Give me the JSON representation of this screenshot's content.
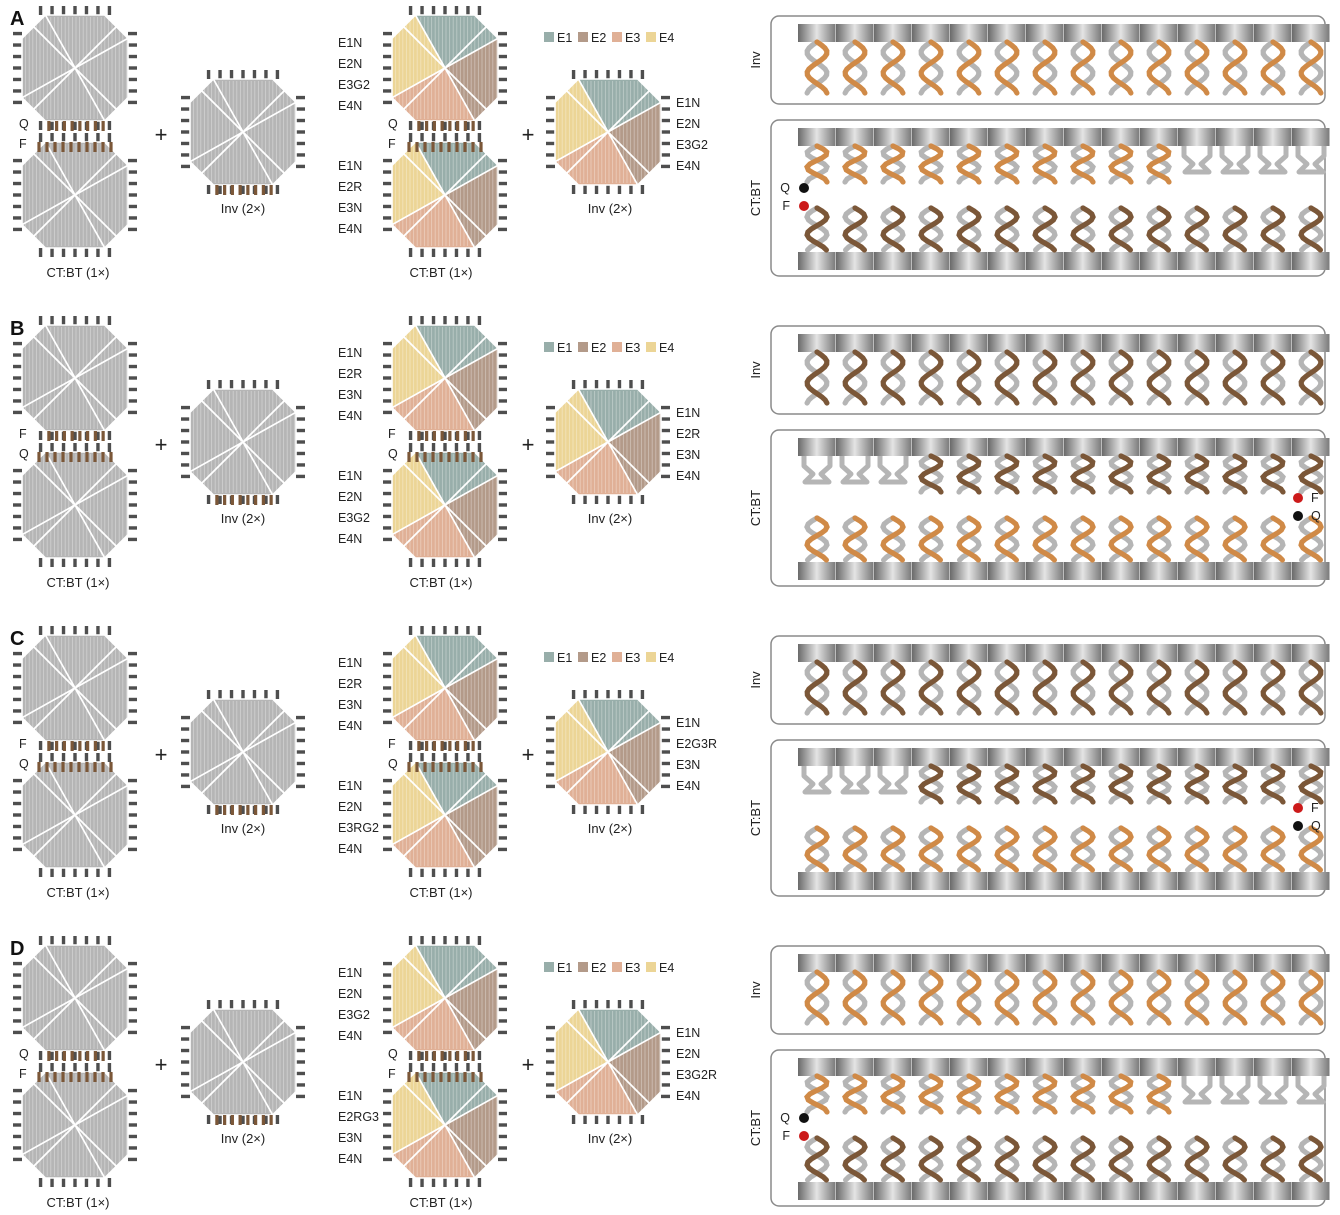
{
  "legend": [
    {
      "label": "E1",
      "color": "#98aeaa"
    },
    {
      "label": "E2",
      "color": "#b39a89"
    },
    {
      "label": "E3",
      "color": "#e0b096"
    },
    {
      "label": "E4",
      "color": "#ecd596"
    }
  ],
  "colors": {
    "gray": "#b5b5b5",
    "brown": "#7b5738",
    "orange": "#d08a47",
    "quencher": "#111111",
    "fluor": "#cc1a1a"
  },
  "labels": {
    "plus": "+",
    "ctbt": "CT:BT (1×)",
    "inv": "Inv (2×)",
    "inv_side": "Inv",
    "ctbt_side": "CT:BT",
    "F": "F",
    "Q": "Q"
  },
  "panels": [
    {
      "letter": "A",
      "top_strands": [
        "E1N",
        "E2N",
        "E3G2",
        "E4N"
      ],
      "bottom_strands": [
        "E1N",
        "E2R",
        "E3N",
        "E4N"
      ],
      "inv_strands": [
        "E1N",
        "E2N",
        "E3G2",
        "E4N"
      ],
      "top_mark": "Q",
      "bottom_mark": "F"
    },
    {
      "letter": "B",
      "top_strands": [
        "E1N",
        "E2R",
        "E3N",
        "E4N"
      ],
      "bottom_strands": [
        "E1N",
        "E2N",
        "E3G2",
        "E4N"
      ],
      "inv_strands": [
        "E1N",
        "E2R",
        "E3N",
        "E4N"
      ],
      "top_mark": "F",
      "bottom_mark": "Q"
    },
    {
      "letter": "C",
      "top_strands": [
        "E1N",
        "E2R",
        "E3N",
        "E4N"
      ],
      "bottom_strands": [
        "E1N",
        "E2N",
        "E3RG2",
        "E4N"
      ],
      "inv_strands": [
        "E1N",
        "E2G3R",
        "E3N",
        "E4N"
      ],
      "top_mark": "F",
      "bottom_mark": "Q"
    },
    {
      "letter": "D",
      "top_strands": [
        "E1N",
        "E2N",
        "E3G2",
        "E4N"
      ],
      "bottom_strands": [
        "E1N",
        "E2RG3",
        "E3N",
        "E4N"
      ],
      "inv_strands": [
        "E1N",
        "E2N",
        "E3G2R",
        "E4N"
      ],
      "top_mark": "Q",
      "bottom_mark": "F"
    }
  ]
}
